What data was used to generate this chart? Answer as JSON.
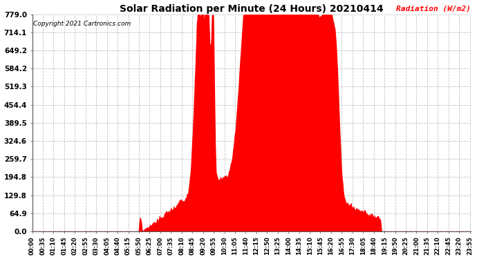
{
  "title": "Solar Radiation per Minute (24 Hours) 20210414",
  "ylabel": "Radiation (W/m2)",
  "copyright_text": "Copyright 2021 Cartronics.com",
  "background_color": "#ffffff",
  "fill_color": "#ff0000",
  "line_color": "#ff0000",
  "ylabel_color": "#ff0000",
  "grid_color": "#aaaaaa",
  "title_color": "#000000",
  "yticks": [
    0.0,
    64.9,
    129.8,
    194.8,
    259.7,
    324.6,
    389.5,
    454.4,
    519.3,
    584.2,
    649.2,
    714.1,
    779.0
  ],
  "ymax": 779.0,
  "ymin": 0.0,
  "num_minutes": 1440,
  "figwidth": 6.9,
  "figheight": 3.75,
  "dpi": 100
}
